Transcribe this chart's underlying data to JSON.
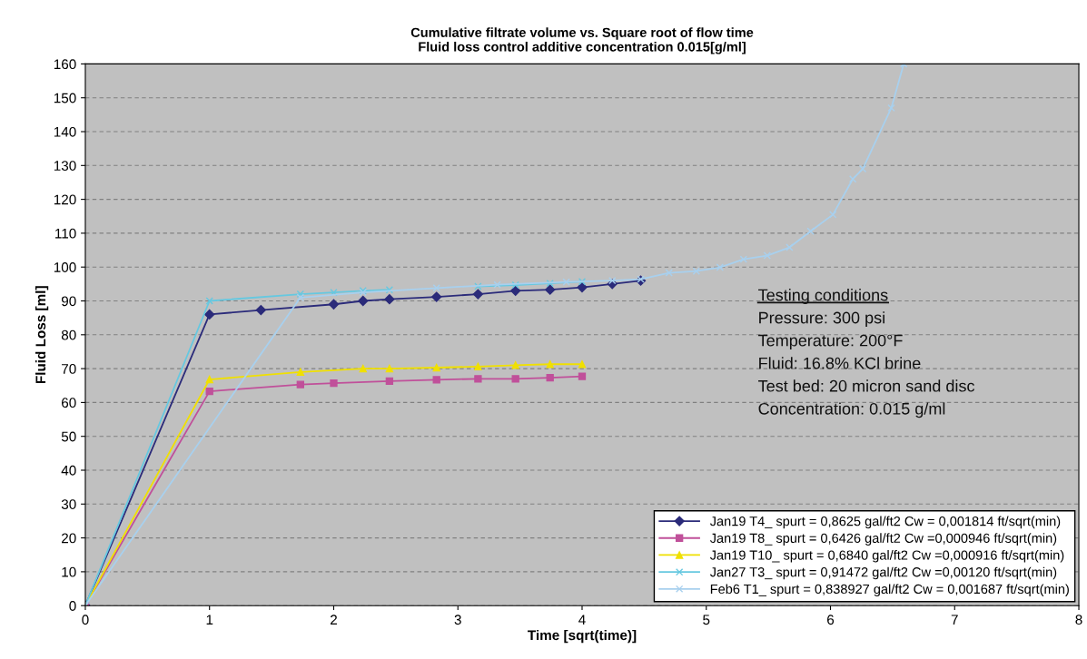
{
  "chart_data": {
    "type": "line",
    "title": "Cumulative filtrate volume vs. Square root of flow time\nFluid loss control additive concentration 0.015[g/ml]",
    "xlabel": "Time [sqrt(time)]",
    "ylabel": "Fluid Loss [ml]",
    "xlim": [
      0,
      8
    ],
    "xticks": [
      0,
      1,
      2,
      3,
      4,
      5,
      6,
      7,
      8
    ],
    "ylim": [
      0,
      160
    ],
    "yticks": [
      0,
      10,
      20,
      30,
      40,
      50,
      60,
      70,
      80,
      90,
      100,
      110,
      120,
      130,
      140,
      150,
      160
    ],
    "grid": "y",
    "legend": "bottom right",
    "annotations": [
      "Testing conditions",
      "Pressure: 300 psi",
      "Temperature: 200°F",
      "Fluid: 16.8% KCl brine",
      "Test bed: 20 micron sand disc",
      "Concentration: 0.015 g/ml"
    ],
    "series": [
      {
        "name": "Jan19 T4_ spurt = 0,8625 gal/ft2 Cw = 0,001814 ft/sqrt(min)",
        "color": "#2b2b7a",
        "marker": "diamond",
        "x": [
          0,
          1,
          1.414,
          2,
          2.236,
          2.449,
          2.828,
          3.162,
          3.464,
          3.742,
          4,
          4.243,
          4.472
        ],
        "values": [
          0,
          86,
          87.3,
          89,
          90,
          90.5,
          91.2,
          92,
          93,
          93.3,
          94,
          95,
          96
        ]
      },
      {
        "name": "Jan19 T8_ spurt = 0,6426 gal/ft2 Cw =0,000946 ft/sqrt(min)",
        "color": "#c0509a",
        "marker": "square",
        "x": [
          0,
          1,
          1.732,
          2,
          2.449,
          2.828,
          3.162,
          3.464,
          3.742,
          4
        ],
        "values": [
          0,
          63.3,
          65.3,
          65.7,
          66.3,
          66.7,
          67,
          67,
          67.3,
          67.7
        ]
      },
      {
        "name": "Jan19 T10_ spurt = 0,6840 gal/ft2 Cw =0,000916 ft/sqrt(min)",
        "color": "#f0e000",
        "marker": "triangle",
        "x": [
          0,
          1,
          1.732,
          2.236,
          2.449,
          2.828,
          3.162,
          3.464,
          3.742,
          4
        ],
        "values": [
          0,
          66.8,
          69,
          70,
          70,
          70.3,
          70.6,
          71,
          71.3,
          71.3
        ]
      },
      {
        "name": "Jan27 T3_ spurt = 0,91472 gal/ft2 Cw =0,00120 ft/sqrt(min)",
        "color": "#66c8e0",
        "marker": "cross",
        "x": [
          0,
          1,
          1.732,
          2,
          2.236,
          2.449,
          2.828,
          3.162,
          3.464,
          3.742,
          4
        ],
        "values": [
          0,
          90,
          92,
          92.5,
          93,
          93.3,
          null,
          94.3,
          94.7,
          95.2,
          95.7
        ]
      },
      {
        "name": "Feb6 T1_ spurt = 0,838927 gal/ft2 Cw = 0,001687 ft/sqrt(min)",
        "color": "#a8d0ee",
        "marker": "cross",
        "x": [
          0,
          1.732,
          2.236,
          2.828,
          3.317,
          3.873,
          4.243,
          4.472,
          4.7,
          4.92,
          5.11,
          5.3,
          5.49,
          5.67,
          5.84,
          6.02,
          6.18,
          6.26,
          6.49,
          6.59
        ],
        "values": [
          0,
          91,
          92.5,
          93.8,
          94.8,
          95.6,
          96,
          96.4,
          98.3,
          98.8,
          99.9,
          102.3,
          103.4,
          105.8,
          110.6,
          115.5,
          126,
          129,
          147,
          160
        ]
      }
    ]
  }
}
